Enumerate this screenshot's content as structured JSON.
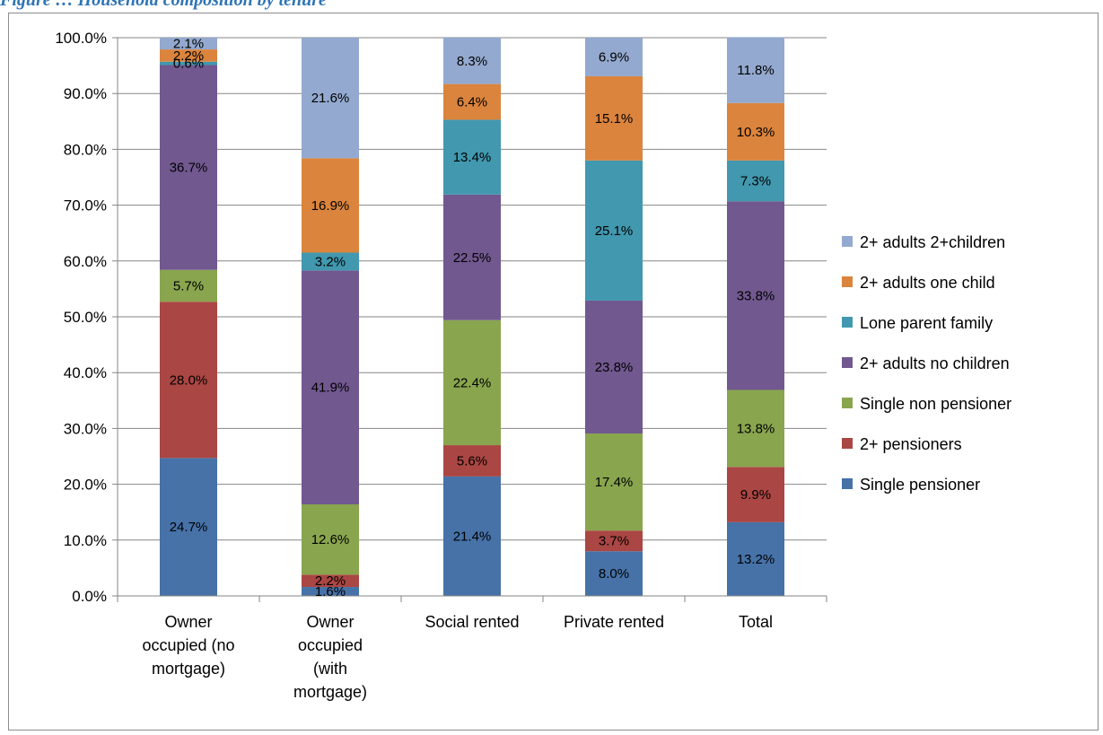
{
  "figure": {
    "title": "Figure … Household composition by tenure"
  },
  "colors": {
    "single_pensioner": "#4672a8",
    "two_plus_pensioners": "#aa4643",
    "single_non_pensioner": "#89a54e",
    "adults_no_children": "#71588f",
    "lone_parent": "#4198af",
    "adults_one_child": "#db843d",
    "adults_2plus_children": "#93a9cf"
  },
  "chart_data": {
    "type": "bar",
    "stacked": true,
    "title": "",
    "xlabel": "",
    "ylabel": "",
    "ylim": [
      0,
      100
    ],
    "ytick_step": 10,
    "ytick_format": "percent_1dp",
    "grid": "horizontal",
    "legend_position": "right",
    "categories": [
      [
        "Owner",
        "occupied (no",
        "mortgage)"
      ],
      [
        "Owner",
        "occupied",
        "(with",
        "mortgage)"
      ],
      [
        "Social rented"
      ],
      [
        "Private rented"
      ],
      [
        "Total"
      ]
    ],
    "series": [
      {
        "name": "Single pensioner",
        "color_key": "single_pensioner",
        "values": [
          24.7,
          1.6,
          21.4,
          8.0,
          13.2
        ]
      },
      {
        "name": "2+ pensioners",
        "color_key": "two_plus_pensioners",
        "values": [
          28.0,
          2.2,
          5.6,
          3.7,
          9.9
        ]
      },
      {
        "name": "Single non pensioner",
        "color_key": "single_non_pensioner",
        "values": [
          5.7,
          12.6,
          22.4,
          17.4,
          13.8
        ]
      },
      {
        "name": "2+ adults no children",
        "color_key": "adults_no_children",
        "values": [
          36.7,
          41.9,
          22.5,
          23.8,
          33.8
        ]
      },
      {
        "name": "Lone parent family",
        "color_key": "lone_parent",
        "values": [
          0.6,
          3.2,
          13.4,
          25.1,
          7.3
        ]
      },
      {
        "name": "2+ adults one child",
        "color_key": "adults_one_child",
        "values": [
          2.2,
          16.9,
          6.4,
          15.1,
          10.3
        ]
      },
      {
        "name": "2+ adults 2+children",
        "color_key": "adults_2plus_children",
        "values": [
          2.1,
          21.6,
          8.3,
          6.9,
          11.8
        ]
      }
    ]
  }
}
